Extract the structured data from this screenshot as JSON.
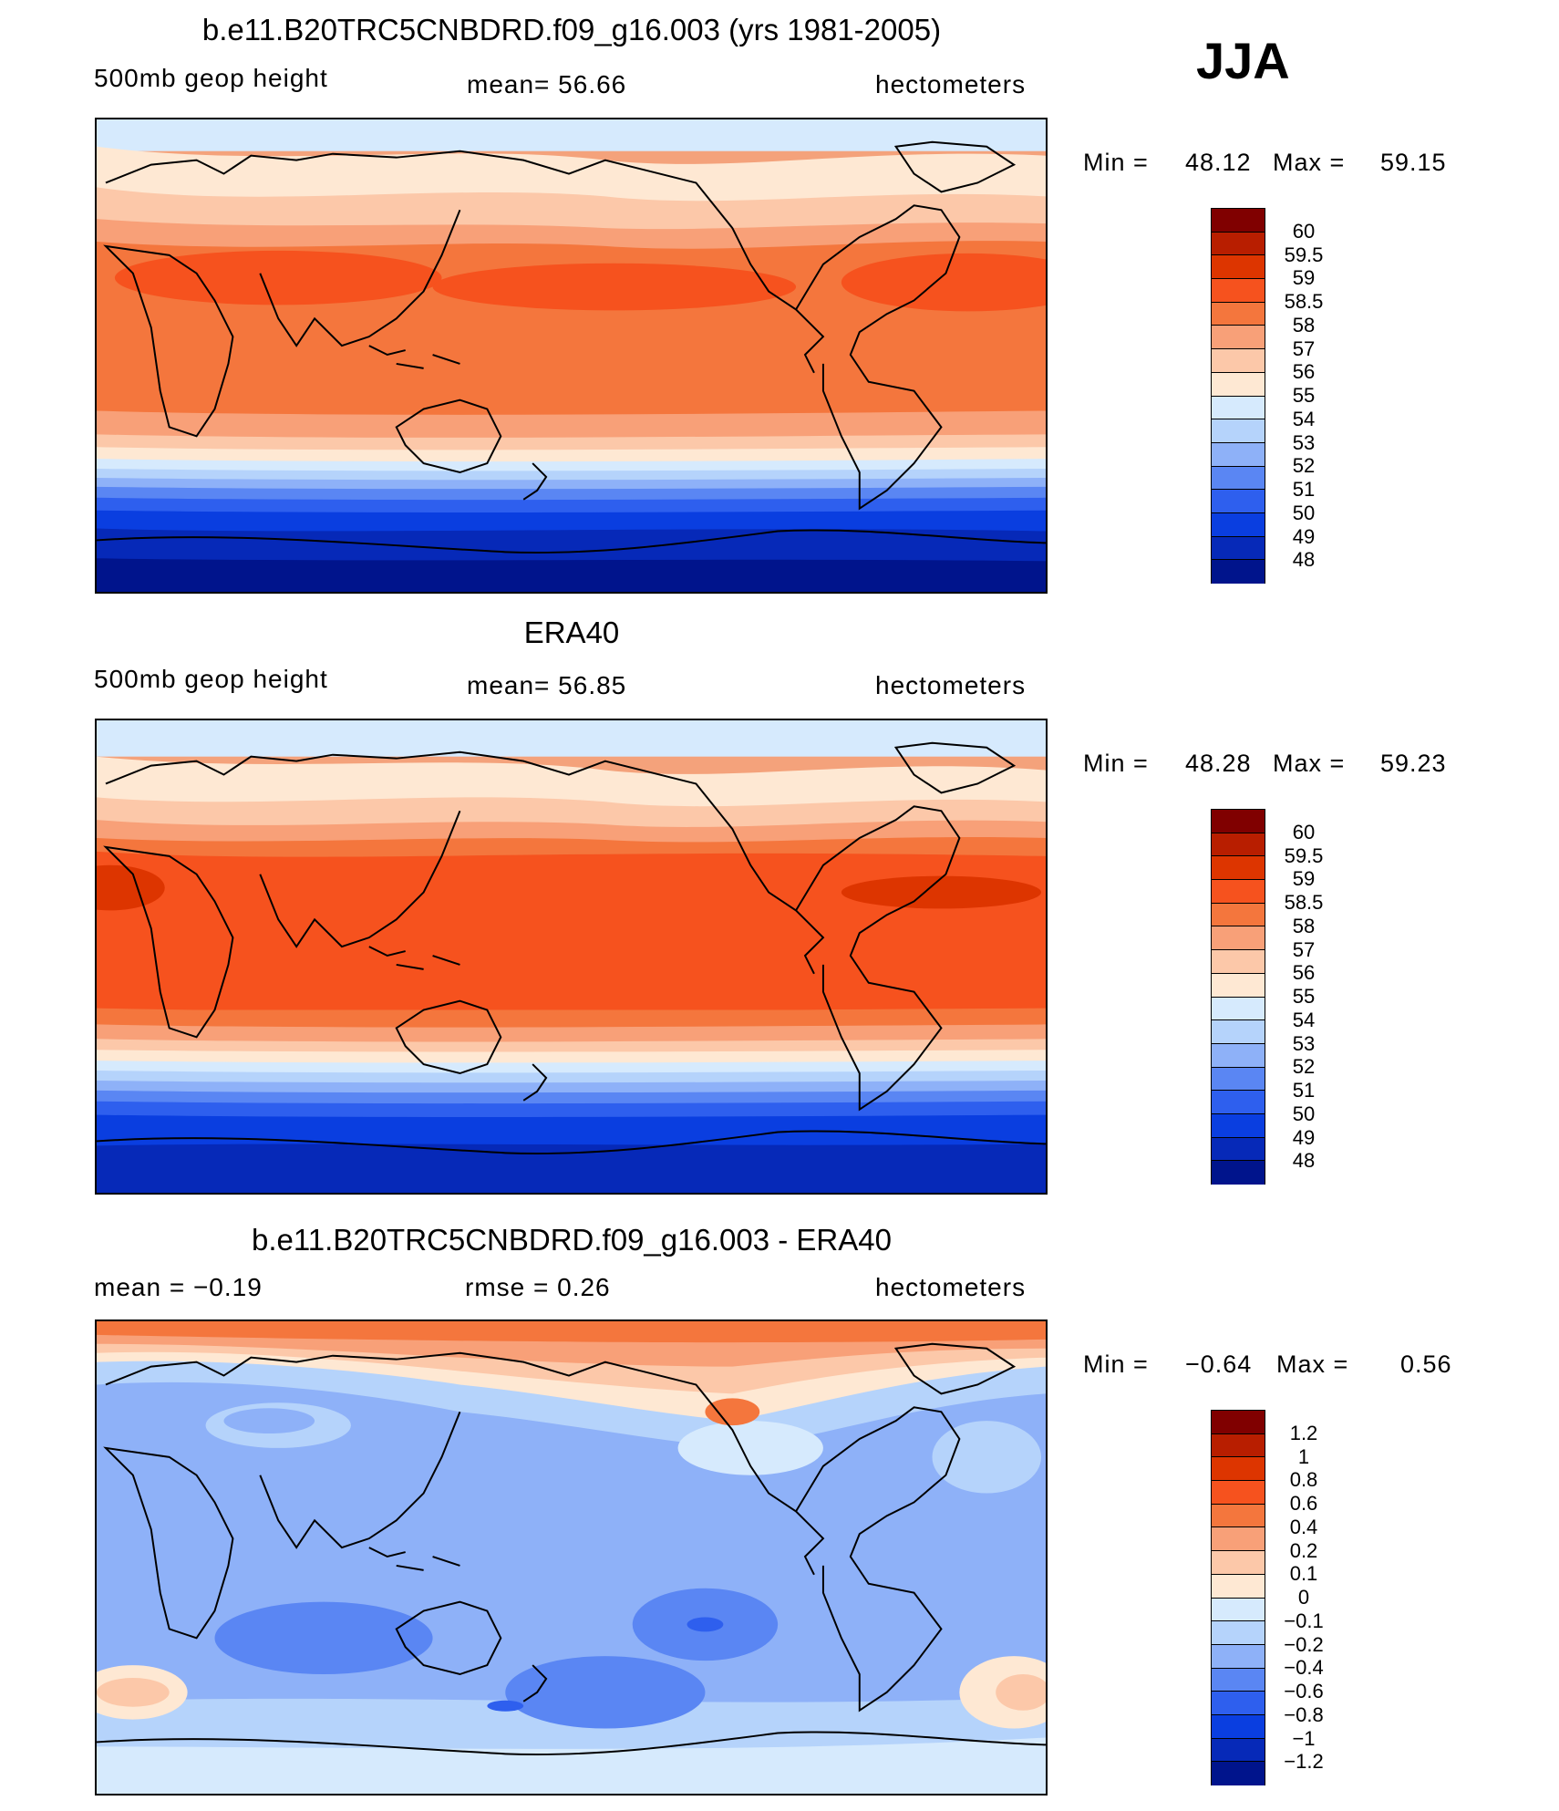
{
  "season": "JJA",
  "panels": [
    {
      "title": "b.e11.B20TRC5CNBDRD.f09_g16.003 (yrs 1981-2005)",
      "left_label": "500mb  geop  height",
      "center_label": "mean=   56.66",
      "units": "hectometers",
      "min_label": "Min  =",
      "min": "48.12",
      "max_label": "Max  =",
      "max": "59.15"
    },
    {
      "title": "ERA40",
      "left_label": "500mb  geop  height",
      "center_label": "mean=   56.85",
      "units": "hectometers",
      "min_label": "Min  =",
      "min": "48.28",
      "max_label": "Max  =",
      "max": "59.23"
    },
    {
      "title": "b.e11.B20TRC5CNBDRD.f09_g16.003 - ERA40",
      "left_label": "mean  =   −0.19",
      "center_label": "rmse  =    0.26",
      "units": "hectometers",
      "min_label": "Min  =",
      "min": "−0.64",
      "max_label": "Max  =",
      "max": "0.56"
    }
  ],
  "colorbars": {
    "height_colors": [
      "#800000",
      "#b81e00",
      "#dd3500",
      "#f6521e",
      "#f4763d",
      "#f8a078",
      "#fcc8a9",
      "#fee8d3",
      "#d6eafd",
      "#b5d3fb",
      "#8eb1f8",
      "#5a86f3",
      "#2e5fee",
      "#0a3ee0",
      "#0629b8",
      "#00148c"
    ],
    "height_labels": [
      "60",
      "59.5",
      "59",
      "58.5",
      "58",
      "57",
      "56",
      "55",
      "54",
      "53",
      "52",
      "51",
      "50",
      "49",
      "48"
    ],
    "diff_colors": [
      "#800000",
      "#b81e00",
      "#dd3500",
      "#f6521e",
      "#f4763d",
      "#f8a078",
      "#fcc8a9",
      "#fee8d3",
      "#d6eafd",
      "#b5d3fb",
      "#8eb1f8",
      "#5a86f3",
      "#2e5fee",
      "#0a3ee0",
      "#0629b8",
      "#00148c"
    ],
    "diff_labels": [
      "1.2",
      "1",
      "0.8",
      "0.6",
      "0.4",
      "0.2",
      "0.1",
      "0",
      "−0.1",
      "−0.2",
      "−0.4",
      "−0.6",
      "−0.8",
      "−1",
      "−1.2"
    ]
  }
}
